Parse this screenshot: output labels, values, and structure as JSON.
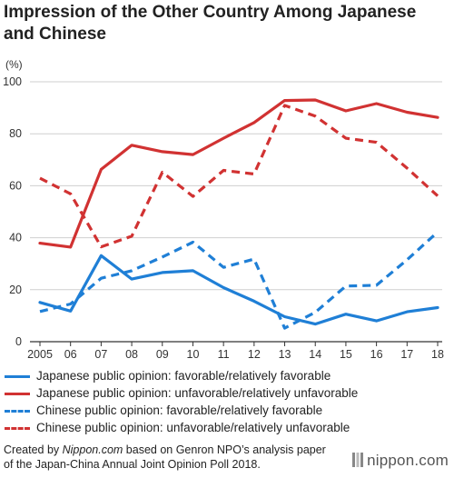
{
  "title": "Impression of the Other Country Among Japanese and Chinese",
  "colors": {
    "blue": "#1f7fd6",
    "red": "#d13232",
    "axis": "#333333",
    "grid": "#cfcfcf"
  },
  "chart_data": {
    "type": "line",
    "title": "Impression of the Other Country Among Japanese and Chinese",
    "ylabel": "(%)",
    "xlabel": "",
    "ylim": [
      0,
      100
    ],
    "yticks": [
      0,
      20,
      40,
      60,
      80,
      100
    ],
    "grid": true,
    "legend_position": "bottom",
    "categories": [
      "2005",
      "06",
      "07",
      "08",
      "09",
      "10",
      "11",
      "12",
      "13",
      "14",
      "15",
      "16",
      "17",
      "18"
    ],
    "series": [
      {
        "name": "Japanese public opinion: favorable/relatively favorable",
        "color": "#1f7fd6",
        "dash": "solid",
        "values": [
          15.1,
          11.8,
          33.1,
          24.1,
          26.6,
          27.3,
          20.8,
          15.6,
          9.6,
          6.8,
          10.6,
          8.0,
          11.5,
          13.1
        ]
      },
      {
        "name": "Japanese public opinion: unfavorable/relatively unfavorable",
        "color": "#d13232",
        "dash": "solid",
        "values": [
          37.9,
          36.4,
          66.3,
          75.6,
          73.1,
          72.0,
          78.3,
          84.3,
          92.8,
          93.0,
          88.8,
          91.6,
          88.3,
          86.3
        ]
      },
      {
        "name": "Chinese public opinion: favorable/relatively favorable",
        "color": "#1f7fd6",
        "dash": "dashed",
        "values": [
          11.6,
          14.5,
          24.4,
          27.3,
          32.6,
          38.3,
          28.6,
          31.8,
          5.2,
          11.3,
          21.4,
          21.7,
          31.5,
          42.2
        ]
      },
      {
        "name": "Chinese public opinion: unfavorable/relatively unfavorable",
        "color": "#d13232",
        "dash": "dashed",
        "values": [
          62.9,
          56.9,
          36.5,
          40.6,
          65.2,
          55.9,
          65.9,
          64.5,
          90.9,
          86.8,
          78.3,
          76.7,
          66.8,
          56.1
        ]
      }
    ]
  },
  "source": {
    "prefix": "Created by ",
    "site": "Nippon.com",
    "suffix": " based on Genron NPO’s analysis paper of the Japan-China Annual Joint Opinion Poll 2018."
  },
  "brand": {
    "label": "nippon.com",
    "icon": "nippon-logo-icon"
  }
}
